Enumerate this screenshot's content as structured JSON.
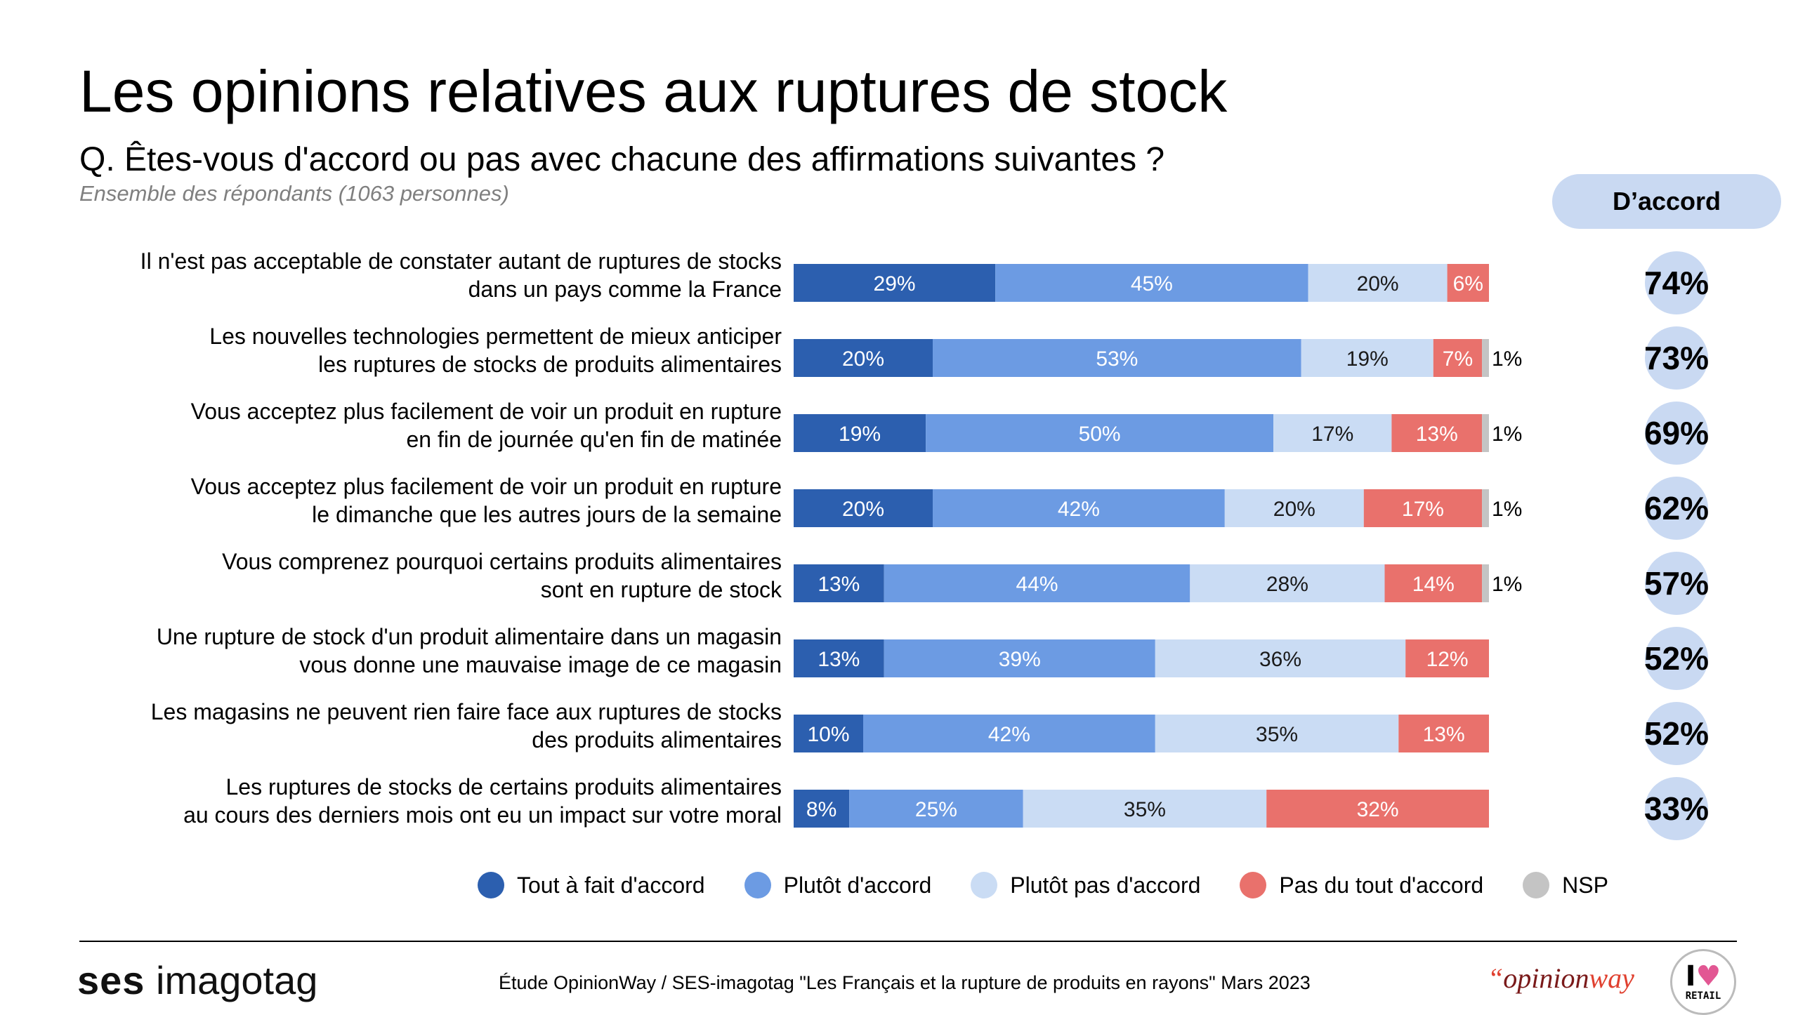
{
  "header": {
    "title": "Les opinions relatives aux ruptures de stock",
    "question": "Q. Êtes-vous d'accord ou pas avec chacune des affirmations suivantes ?",
    "sample": "Ensemble des répondants (1063 personnes)",
    "accord_header": "D’accord"
  },
  "colors": {
    "tout_a_fait": "#2c5faf",
    "plutot": "#6c9be3",
    "plutot_pas": "#cadcf4",
    "pas_du_tout": "#e9716c",
    "nsp": "#c4c4c4",
    "circle": "#c9d9f2"
  },
  "chart_data": {
    "type": "bar",
    "orientation": "horizontal",
    "stacked": true,
    "categories": [
      [
        "Il n'est pas acceptable de constater autant de ruptures de stocks",
        "dans un pays comme la France"
      ],
      [
        "Les nouvelles technologies permettent de mieux anticiper",
        "les ruptures de stocks de produits alimentaires"
      ],
      [
        "Vous acceptez plus facilement de voir un produit en rupture",
        "en fin de journée qu'en fin de matinée"
      ],
      [
        "Vous acceptez plus facilement de voir un produit en rupture",
        "le dimanche que les autres jours de la semaine"
      ],
      [
        "Vous comprenez pourquoi certains produits alimentaires",
        "sont en rupture de stock"
      ],
      [
        "Une rupture de stock d'un produit alimentaire dans un magasin",
        "vous donne une mauvaise image de ce magasin"
      ],
      [
        "Les magasins ne peuvent rien faire face aux ruptures de stocks",
        "des produits alimentaires"
      ],
      [
        "Les ruptures de stocks de certains produits alimentaires",
        "au cours des derniers mois ont eu un impact sur votre moral"
      ]
    ],
    "series": [
      {
        "name": "Tout à fait d'accord",
        "values": [
          29,
          20,
          19,
          20,
          13,
          13,
          10,
          8
        ]
      },
      {
        "name": "Plutôt d'accord",
        "values": [
          45,
          53,
          50,
          42,
          44,
          39,
          42,
          25
        ]
      },
      {
        "name": "Plutôt pas d'accord",
        "values": [
          20,
          19,
          17,
          20,
          28,
          36,
          35,
          35
        ]
      },
      {
        "name": "Pas du tout d'accord",
        "values": [
          6,
          7,
          13,
          17,
          14,
          12,
          13,
          32
        ]
      },
      {
        "name": "NSP",
        "values": [
          0,
          1,
          1,
          1,
          1,
          0,
          0,
          0
        ]
      }
    ],
    "accord_totals": [
      74,
      73,
      69,
      62,
      57,
      52,
      52,
      33
    ],
    "xlim": [
      0,
      100
    ],
    "unit": "%",
    "legend_position": "bottom"
  },
  "footer": {
    "brand_left_bold": "ses",
    "brand_left_light": "imagotag",
    "source": "Étude OpinionWay / SES-imagotag \"Les Français et la rupture de produits en rayons\" Mars 2023",
    "brand_right_quote": "“",
    "brand_right_opinion": "opinion",
    "brand_right_way": "way",
    "badge_top_letter": "I",
    "badge_top_heart": "♥",
    "badge_bottom": "RETAIL"
  }
}
